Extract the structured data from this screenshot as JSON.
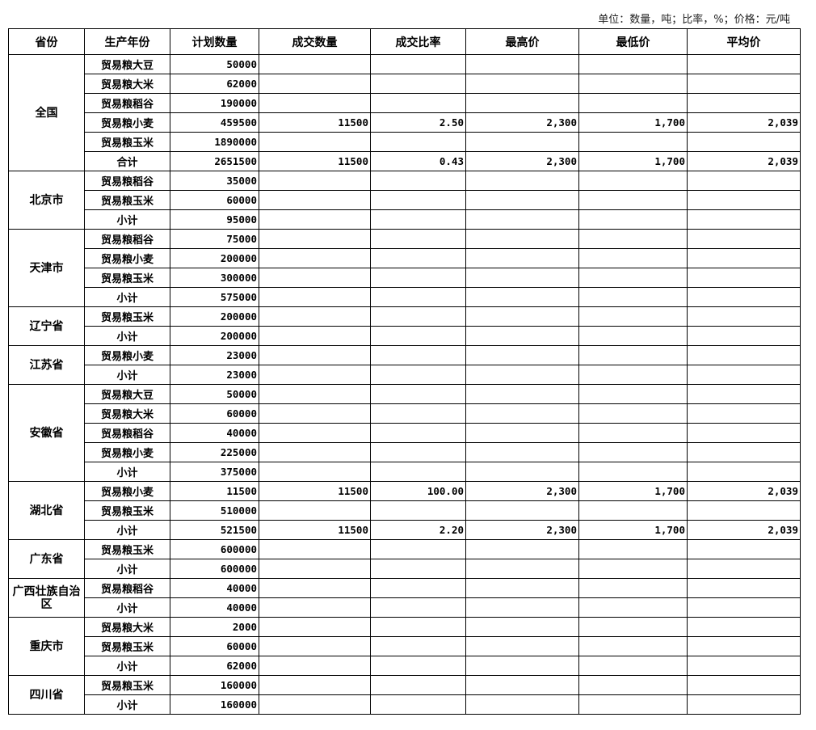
{
  "unit_note": "单位：数量，吨；比率，%；价格：元/吨",
  "headers": [
    "省份",
    "生产年份",
    "计划数量",
    "成交数量",
    "成交比率",
    "最高价",
    "最低价",
    "平均价"
  ],
  "groups": [
    {
      "province": "全国",
      "rows": [
        [
          "贸易粮大豆",
          "50000",
          "",
          "",
          "",
          "",
          ""
        ],
        [
          "贸易粮大米",
          "62000",
          "",
          "",
          "",
          "",
          ""
        ],
        [
          "贸易粮稻谷",
          "190000",
          "",
          "",
          "",
          "",
          ""
        ],
        [
          "贸易粮小麦",
          "459500",
          "11500",
          "2.50",
          "2,300",
          "1,700",
          "2,039"
        ],
        [
          "贸易粮玉米",
          "1890000",
          "",
          "",
          "",
          "",
          ""
        ],
        [
          "合计",
          "2651500",
          "11500",
          "0.43",
          "2,300",
          "1,700",
          "2,039"
        ]
      ]
    },
    {
      "province": "北京市",
      "rows": [
        [
          "贸易粮稻谷",
          "35000",
          "",
          "",
          "",
          "",
          ""
        ],
        [
          "贸易粮玉米",
          "60000",
          "",
          "",
          "",
          "",
          ""
        ],
        [
          "小计",
          "95000",
          "",
          "",
          "",
          "",
          ""
        ]
      ]
    },
    {
      "province": "天津市",
      "rows": [
        [
          "贸易粮稻谷",
          "75000",
          "",
          "",
          "",
          "",
          ""
        ],
        [
          "贸易粮小麦",
          "200000",
          "",
          "",
          "",
          "",
          ""
        ],
        [
          "贸易粮玉米",
          "300000",
          "",
          "",
          "",
          "",
          ""
        ],
        [
          "小计",
          "575000",
          "",
          "",
          "",
          "",
          ""
        ]
      ]
    },
    {
      "province": "辽宁省",
      "rows": [
        [
          "贸易粮玉米",
          "200000",
          "",
          "",
          "",
          "",
          ""
        ],
        [
          "小计",
          "200000",
          "",
          "",
          "",
          "",
          ""
        ]
      ]
    },
    {
      "province": "江苏省",
      "rows": [
        [
          "贸易粮小麦",
          "23000",
          "",
          "",
          "",
          "",
          ""
        ],
        [
          "小计",
          "23000",
          "",
          "",
          "",
          "",
          ""
        ]
      ]
    },
    {
      "province": "安徽省",
      "rows": [
        [
          "贸易粮大豆",
          "50000",
          "",
          "",
          "",
          "",
          ""
        ],
        [
          "贸易粮大米",
          "60000",
          "",
          "",
          "",
          "",
          ""
        ],
        [
          "贸易粮稻谷",
          "40000",
          "",
          "",
          "",
          "",
          ""
        ],
        [
          "贸易粮小麦",
          "225000",
          "",
          "",
          "",
          "",
          ""
        ],
        [
          "小计",
          "375000",
          "",
          "",
          "",
          "",
          ""
        ]
      ]
    },
    {
      "province": "湖北省",
      "rows": [
        [
          "贸易粮小麦",
          "11500",
          "11500",
          "100.00",
          "2,300",
          "1,700",
          "2,039"
        ],
        [
          "贸易粮玉米",
          "510000",
          "",
          "",
          "",
          "",
          ""
        ],
        [
          "小计",
          "521500",
          "11500",
          "2.20",
          "2,300",
          "1,700",
          "2,039"
        ]
      ]
    },
    {
      "province": "广东省",
      "rows": [
        [
          "贸易粮玉米",
          "600000",
          "",
          "",
          "",
          "",
          ""
        ],
        [
          "小计",
          "600000",
          "",
          "",
          "",
          "",
          ""
        ]
      ]
    },
    {
      "province": "广西壮族自治区",
      "rows": [
        [
          "贸易粮稻谷",
          "40000",
          "",
          "",
          "",
          "",
          ""
        ],
        [
          "小计",
          "40000",
          "",
          "",
          "",
          "",
          ""
        ]
      ]
    },
    {
      "province": "重庆市",
      "rows": [
        [
          "贸易粮大米",
          "2000",
          "",
          "",
          "",
          "",
          ""
        ],
        [
          "贸易粮玉米",
          "60000",
          "",
          "",
          "",
          "",
          ""
        ],
        [
          "小计",
          "62000",
          "",
          "",
          "",
          "",
          ""
        ]
      ]
    },
    {
      "province": "四川省",
      "rows": [
        [
          "贸易粮玉米",
          "160000",
          "",
          "",
          "",
          "",
          ""
        ],
        [
          "小计",
          "160000",
          "",
          "",
          "",
          "",
          ""
        ]
      ]
    }
  ]
}
